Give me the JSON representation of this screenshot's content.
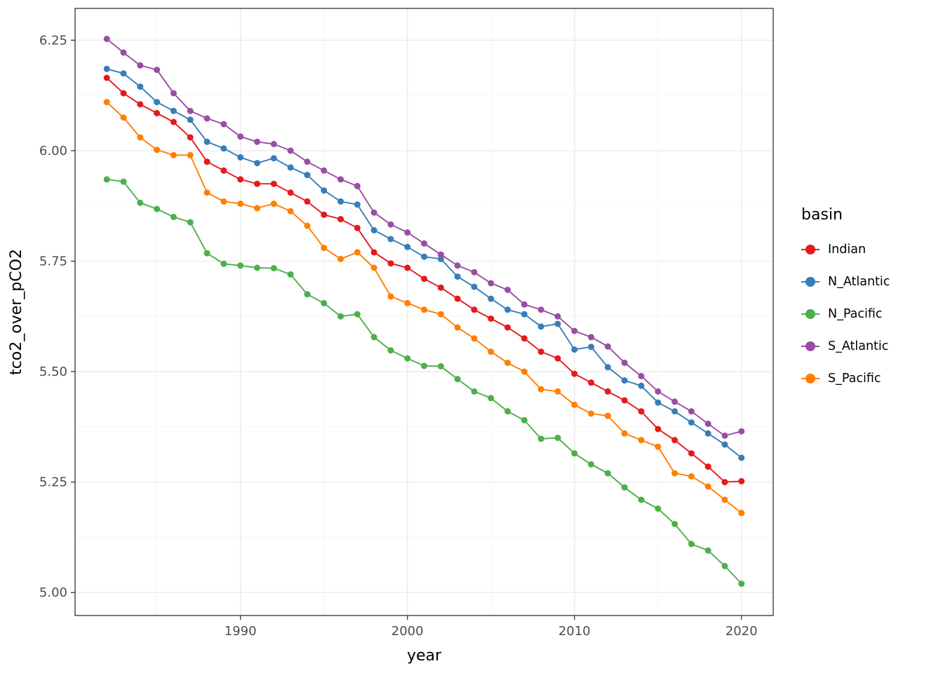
{
  "chart_data": {
    "type": "line",
    "title": "",
    "xlabel": "year",
    "ylabel": "tco2_over_pCO2",
    "legend_title": "basin",
    "legend_position": "right",
    "grid": "major+minor",
    "panel_bg": "#FFFFFF",
    "panel_border": "#333333",
    "grid_major_color": "#EBEBEB",
    "grid_minor_color": "#F5F5F5",
    "tick_color": "#333333",
    "tick_label_color": "#4D4D4D",
    "axis_title_color": "#000000",
    "xlim": [
      1980.1,
      2021.9
    ],
    "ylim": [
      4.948,
      6.322
    ],
    "x_ticks": [
      1990,
      2000,
      2010,
      2020
    ],
    "x_tick_labels": [
      "1990",
      "2000",
      "2010",
      "2020"
    ],
    "x_minor_ticks": [
      1985,
      1995,
      2005,
      2015
    ],
    "y_ticks": [
      5.0,
      5.25,
      5.5,
      5.75,
      6.0,
      6.25
    ],
    "y_tick_labels": [
      "5.00",
      "5.25",
      "5.50",
      "5.75",
      "6.00",
      "6.25"
    ],
    "y_minor_ticks": [
      5.125,
      5.375,
      5.625,
      5.875,
      6.125
    ],
    "x": [
      1982,
      1983,
      1984,
      1985,
      1986,
      1987,
      1988,
      1989,
      1990,
      1991,
      1992,
      1993,
      1994,
      1995,
      1996,
      1997,
      1998,
      1999,
      2000,
      2001,
      2002,
      2003,
      2004,
      2005,
      2006,
      2007,
      2008,
      2009,
      2010,
      2011,
      2012,
      2013,
      2014,
      2015,
      2016,
      2017,
      2018,
      2019,
      2020
    ],
    "series": [
      {
        "name": "Indian",
        "color": "#E41A1C",
        "values": [
          6.165,
          6.13,
          6.105,
          6.085,
          6.065,
          6.03,
          5.975,
          5.955,
          5.935,
          5.925,
          5.925,
          5.905,
          5.885,
          5.855,
          5.845,
          5.825,
          5.77,
          5.745,
          5.735,
          5.71,
          5.69,
          5.665,
          5.64,
          5.62,
          5.6,
          5.575,
          5.545,
          5.53,
          5.495,
          5.475,
          5.455,
          5.435,
          5.41,
          5.37,
          5.345,
          5.315,
          5.285,
          5.25,
          5.252
        ]
      },
      {
        "name": "N_Atlantic",
        "color": "#377EB8",
        "values": [
          6.185,
          6.175,
          6.145,
          6.11,
          6.09,
          6.07,
          6.02,
          6.005,
          5.985,
          5.972,
          5.983,
          5.962,
          5.945,
          5.91,
          5.885,
          5.878,
          5.82,
          5.8,
          5.782,
          5.76,
          5.755,
          5.715,
          5.692,
          5.665,
          5.64,
          5.63,
          5.602,
          5.608,
          5.55,
          5.556,
          5.51,
          5.48,
          5.468,
          5.43,
          5.41,
          5.385,
          5.36,
          5.335,
          5.305
        ]
      },
      {
        "name": "N_Pacific",
        "color": "#4DAF4A",
        "values": [
          5.935,
          5.93,
          5.882,
          5.868,
          5.85,
          5.838,
          5.768,
          5.744,
          5.74,
          5.735,
          5.734,
          5.72,
          5.675,
          5.655,
          5.625,
          5.63,
          5.578,
          5.548,
          5.53,
          5.513,
          5.512,
          5.483,
          5.455,
          5.44,
          5.41,
          5.39,
          5.348,
          5.35,
          5.315,
          5.29,
          5.27,
          5.238,
          5.21,
          5.19,
          5.155,
          5.11,
          5.095,
          5.06,
          5.02
        ]
      },
      {
        "name": "S_Atlantic",
        "color": "#984EA3",
        "values": [
          6.253,
          6.222,
          6.193,
          6.183,
          6.13,
          6.09,
          6.073,
          6.06,
          6.032,
          6.02,
          6.015,
          6.0,
          5.975,
          5.955,
          5.935,
          5.92,
          5.86,
          5.833,
          5.815,
          5.79,
          5.765,
          5.74,
          5.725,
          5.7,
          5.685,
          5.652,
          5.64,
          5.625,
          5.592,
          5.578,
          5.557,
          5.52,
          5.49,
          5.455,
          5.432,
          5.41,
          5.382,
          5.355,
          5.365
        ]
      },
      {
        "name": "S_Pacific",
        "color": "#FF7F00",
        "values": [
          6.11,
          6.075,
          6.03,
          6.002,
          5.99,
          5.99,
          5.905,
          5.885,
          5.88,
          5.87,
          5.88,
          5.863,
          5.83,
          5.78,
          5.755,
          5.77,
          5.735,
          5.67,
          5.655,
          5.64,
          5.63,
          5.6,
          5.575,
          5.545,
          5.52,
          5.5,
          5.46,
          5.455,
          5.425,
          5.405,
          5.4,
          5.36,
          5.345,
          5.33,
          5.27,
          5.263,
          5.24,
          5.21,
          5.18
        ]
      }
    ]
  }
}
